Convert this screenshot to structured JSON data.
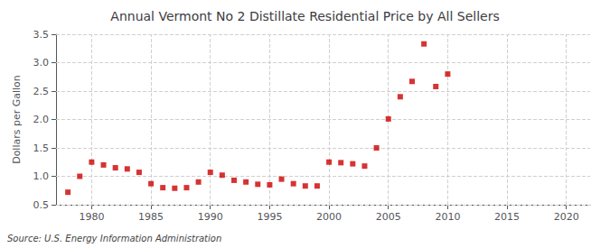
{
  "chart_data": {
    "type": "scatter",
    "title": "Annual Vermont No 2 Distillate Residential Price by All Sellers",
    "ylabel": "Dollars per Gallon",
    "annotation": "Source: U.S. Energy Information Administration",
    "x": [
      1978,
      1979,
      1980,
      1981,
      1982,
      1983,
      1984,
      1985,
      1986,
      1987,
      1988,
      1989,
      1990,
      1991,
      1992,
      1993,
      1994,
      1995,
      1996,
      1997,
      1998,
      1999,
      2000,
      2001,
      2002,
      2003,
      2004,
      2005,
      2006,
      2007,
      2008,
      2009,
      2010
    ],
    "values": [
      0.72,
      1.0,
      1.25,
      1.2,
      1.15,
      1.13,
      1.07,
      0.87,
      0.8,
      0.79,
      0.8,
      0.9,
      1.07,
      1.02,
      0.93,
      0.9,
      0.86,
      0.85,
      0.95,
      0.87,
      0.83,
      0.83,
      1.25,
      1.24,
      1.22,
      1.18,
      1.5,
      2.01,
      2.4,
      2.67,
      3.33,
      2.58,
      2.8
    ],
    "color": "#cc0000",
    "marker": "square",
    "xlim": [
      1977,
      2022
    ],
    "ylim": [
      0.5,
      3.5
    ],
    "xticks": [
      1980,
      1985,
      1990,
      1995,
      2000,
      2005,
      2010,
      2015,
      2020
    ],
    "yticks": [
      0.5,
      {
        "value": 1,
        "label": "1.0"
      },
      1.5,
      {
        "value": 2,
        "label": "2.0"
      },
      2.5,
      {
        "value": 3,
        "label": "3.0"
      },
      3.5
    ],
    "grid": true
  }
}
